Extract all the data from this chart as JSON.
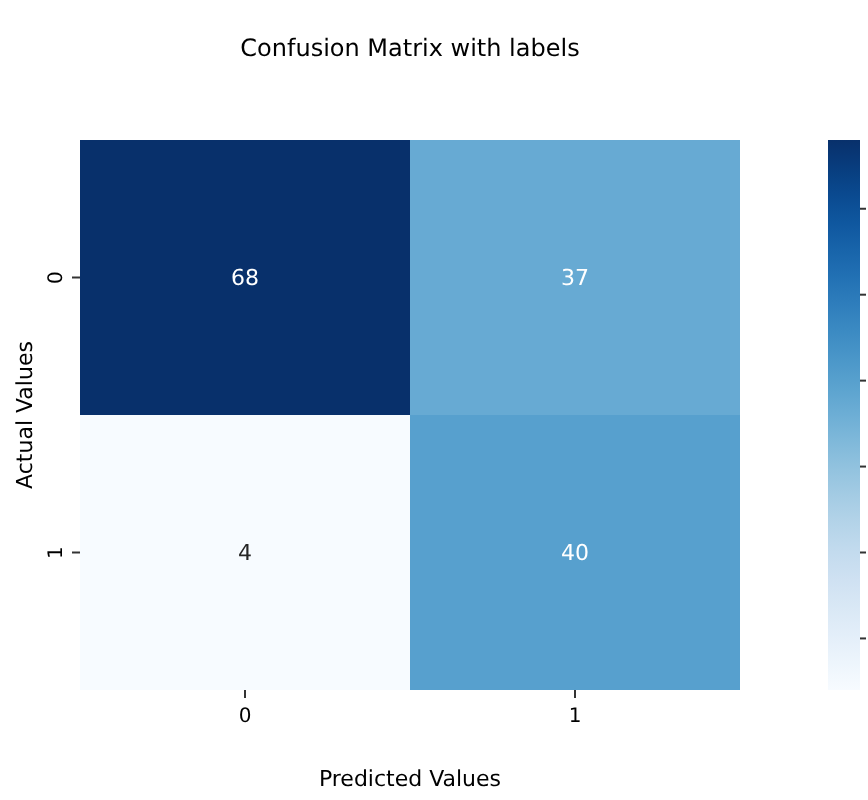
{
  "chart_data": {
    "type": "heatmap",
    "title": "Confusion Matrix with labels",
    "xlabel": "Predicted Values",
    "ylabel": "Actual Values",
    "categories": [
      "0",
      "1"
    ],
    "y_categories": [
      "0",
      "1"
    ],
    "cells": [
      [
        68,
        37
      ],
      [
        4,
        40
      ]
    ],
    "data_labels": true
  }
}
